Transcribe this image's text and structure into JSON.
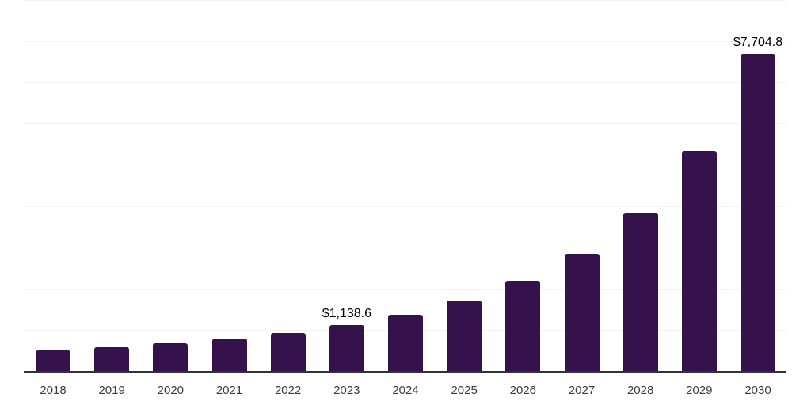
{
  "chart_style": {
    "background_color": "#ffffff",
    "bar_color": "#35124B",
    "axis_line_color": "#333333",
    "gridline_color": "#f2f2f2",
    "data_label_color": "#000000",
    "tick_label_color": "#3c3c3c"
  },
  "chart_data": {
    "type": "bar",
    "title": "",
    "xlabel": "",
    "ylabel": "",
    "categories": [
      "2018",
      "2019",
      "2020",
      "2021",
      "2022",
      "2023",
      "2024",
      "2025",
      "2026",
      "2027",
      "2028",
      "2029",
      "2030"
    ],
    "values": [
      510,
      590,
      685,
      805,
      935,
      1138.6,
      1375,
      1720,
      2200,
      2855,
      3850,
      5345,
      7704.8
    ],
    "data_labels": [
      null,
      null,
      null,
      null,
      null,
      "$1,138.6",
      null,
      null,
      null,
      null,
      null,
      null,
      "$7,704.8"
    ],
    "ylim": [
      0,
      9000
    ],
    "gridline_step": 1000,
    "grid": "horizontal",
    "y_tick_labels_visible": false,
    "x_tick_labels_visible": true,
    "legend_position": "none"
  }
}
